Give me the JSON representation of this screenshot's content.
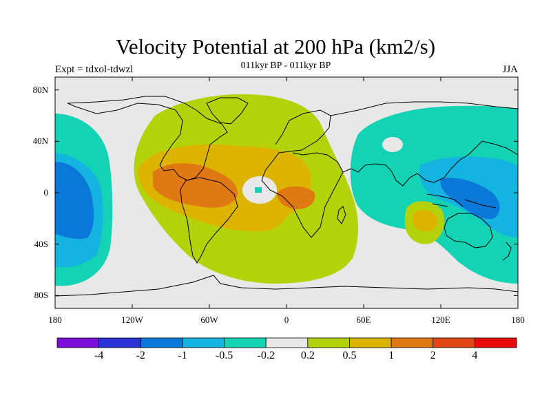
{
  "header": {
    "title": "Velocity Potential at 200 hPa (km2/s)",
    "subtitle": "011kyr BP - 011kyr BP",
    "left_label": "Expt = tdxol-tdwzl",
    "right_label": "JJA"
  },
  "map": {
    "projection": "cylindrical equidistant",
    "lon_range": [
      -180,
      180
    ],
    "lat_range": [
      -90,
      90
    ],
    "lat_ticks": [
      {
        "value": 80,
        "label": "80N"
      },
      {
        "value": 40,
        "label": "40N"
      },
      {
        "value": 0,
        "label": "0"
      },
      {
        "value": -40,
        "label": "40S"
      },
      {
        "value": -80,
        "label": "80S"
      }
    ],
    "lon_ticks": [
      {
        "value": -180,
        "label": "180"
      },
      {
        "value": -120,
        "label": "120W"
      },
      {
        "value": -60,
        "label": "60W"
      },
      {
        "value": 0,
        "label": "0"
      },
      {
        "value": 60,
        "label": "60E"
      },
      {
        "value": 120,
        "label": "120E"
      },
      {
        "value": 180,
        "label": "180"
      }
    ]
  },
  "colorbar": {
    "colors": [
      "#7a0fd8",
      "#2a32d8",
      "#0a78d8",
      "#14b4e0",
      "#14d2b4",
      "#e8e8e8",
      "#b4d20a",
      "#dcb400",
      "#e07814",
      "#e04614",
      "#e80a0a"
    ],
    "labels": [
      "-4",
      "-2",
      "-1",
      "-0.5",
      "-0.2",
      "0.2",
      "0.5",
      "1",
      "2",
      "4"
    ]
  },
  "field_colors": {
    "neutral": "#e8e8e8",
    "neg1": "#14d2b4",
    "neg2": "#14b4e0",
    "neg3": "#0a78d8",
    "pos1": "#b4d20a",
    "pos2": "#dcb400",
    "pos3": "#e07814"
  }
}
